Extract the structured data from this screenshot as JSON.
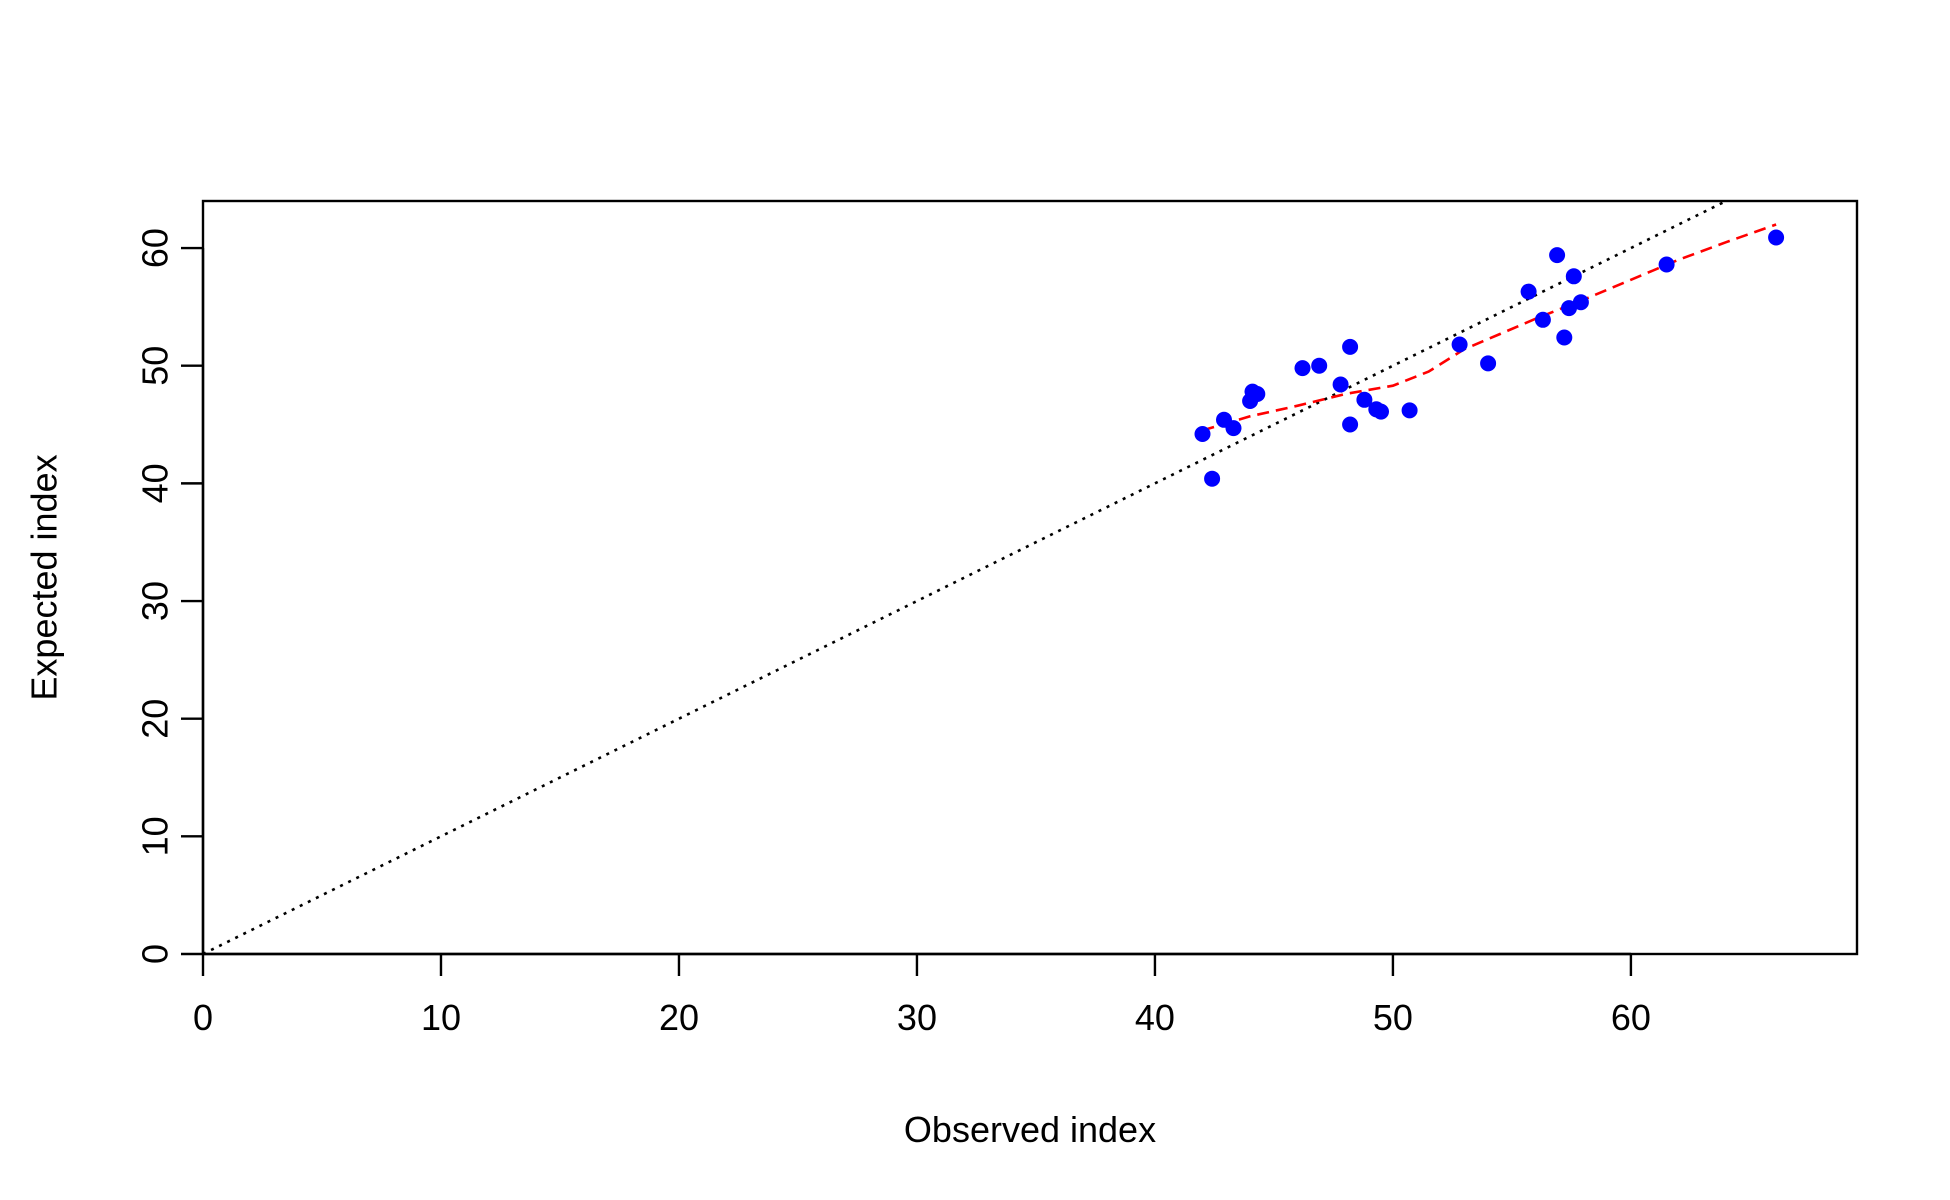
{
  "chart_data": {
    "type": "scatter",
    "title": "",
    "xlabel": "Observed index",
    "ylabel": "Expected index",
    "xlim": [
      0,
      69.5
    ],
    "ylim": [
      0,
      64
    ],
    "x_ticks": [
      0,
      10,
      20,
      30,
      40,
      50,
      60
    ],
    "y_ticks": [
      0,
      10,
      20,
      30,
      40,
      50,
      60
    ],
    "grid": false,
    "legend": "none",
    "series": [
      {
        "type": "scatter",
        "color": "#0000ff",
        "marker": "filled-circle",
        "points": [
          [
            42.0,
            44.2
          ],
          [
            42.4,
            40.4
          ],
          [
            42.9,
            45.4
          ],
          [
            43.3,
            44.7
          ],
          [
            44.0,
            47.0
          ],
          [
            44.1,
            47.8
          ],
          [
            44.3,
            47.6
          ],
          [
            46.2,
            49.8
          ],
          [
            46.9,
            50.0
          ],
          [
            47.8,
            48.4
          ],
          [
            48.2,
            45.0
          ],
          [
            48.2,
            51.6
          ],
          [
            48.8,
            47.1
          ],
          [
            49.3,
            46.3
          ],
          [
            49.5,
            46.1
          ],
          [
            50.7,
            46.2
          ],
          [
            52.8,
            51.8
          ],
          [
            54.0,
            50.2
          ],
          [
            55.7,
            56.3
          ],
          [
            56.3,
            53.9
          ],
          [
            56.9,
            59.4
          ],
          [
            57.2,
            52.4
          ],
          [
            57.4,
            54.9
          ],
          [
            57.6,
            57.6
          ],
          [
            57.9,
            55.4
          ],
          [
            61.5,
            58.6
          ],
          [
            66.1,
            60.9
          ]
        ]
      },
      {
        "type": "line",
        "color": "#000000",
        "style": "dotted",
        "points": [
          [
            0,
            0
          ],
          [
            69.5,
            69.5
          ]
        ]
      },
      {
        "type": "line",
        "color": "#ff0000",
        "style": "dashed",
        "points": [
          [
            42.0,
            44.5
          ],
          [
            44.0,
            45.7
          ],
          [
            46.0,
            46.6
          ],
          [
            48.0,
            47.6
          ],
          [
            50.0,
            48.3
          ],
          [
            51.5,
            49.5
          ],
          [
            53.0,
            51.4
          ],
          [
            54.5,
            52.7
          ],
          [
            56.0,
            54.0
          ],
          [
            58.0,
            55.6
          ],
          [
            60.0,
            57.3
          ],
          [
            62.0,
            59.0
          ],
          [
            64.0,
            60.5
          ],
          [
            66.1,
            62.0
          ]
        ]
      }
    ]
  }
}
